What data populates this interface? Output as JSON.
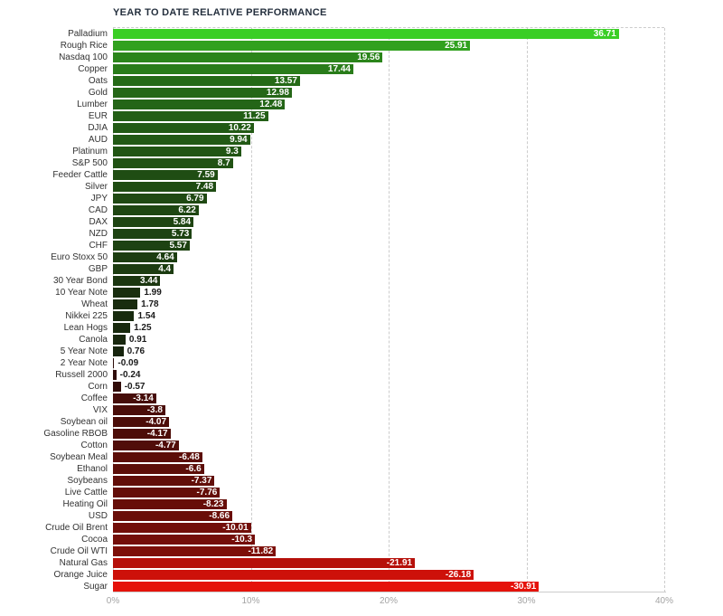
{
  "title": "YEAR TO DATE RELATIVE PERFORMANCE",
  "chart_data": {
    "type": "bar",
    "orientation": "horizontal",
    "title": "YEAR TO DATE RELATIVE PERFORMANCE",
    "x_axis": {
      "min": 0,
      "max": 40,
      "ticks": [
        "0%",
        "10%",
        "20%",
        "30%",
        "40%"
      ],
      "grid": "dashed"
    },
    "legend": "none",
    "note": "bars plotted by absolute value; color encodes sign and magnitude (green positive, red negative)",
    "colors": {
      "pos_high": "#3ace25",
      "pos_low": "#161f0d",
      "neg_low": "#2b0c09",
      "neg_high": "#e5120a",
      "label_inside": "#ffffff",
      "label_outside": "#1a1a1a"
    },
    "categories": [
      "Palladium",
      "Rough Rice",
      "Nasdaq 100",
      "Copper",
      "Oats",
      "Gold",
      "Lumber",
      "EUR",
      "DJIA",
      "AUD",
      "Platinum",
      "S&P 500",
      "Feeder Cattle",
      "Silver",
      "JPY",
      "CAD",
      "DAX",
      "NZD",
      "CHF",
      "Euro Stoxx 50",
      "GBP",
      "30 Year Bond",
      "10 Year Note",
      "Wheat",
      "Nikkei 225",
      "Lean Hogs",
      "Canola",
      "5 Year Note",
      "2 Year Note",
      "Russell 2000",
      "Corn",
      "Coffee",
      "VIX",
      "Soybean oil",
      "Gasoline RBOB",
      "Cotton",
      "Soybean Meal",
      "Ethanol",
      "Soybeans",
      "Live Cattle",
      "Heating Oil",
      "USD",
      "Crude Oil Brent",
      "Cocoa",
      "Crude Oil WTI",
      "Natural Gas",
      "Orange Juice",
      "Sugar"
    ],
    "values": [
      36.71,
      25.91,
      19.56,
      17.44,
      13.57,
      12.98,
      12.48,
      11.25,
      10.22,
      9.94,
      9.3,
      8.7,
      7.59,
      7.48,
      6.79,
      6.22,
      5.84,
      5.73,
      5.57,
      4.64,
      4.4,
      3.44,
      1.99,
      1.78,
      1.54,
      1.25,
      0.91,
      0.76,
      -0.09,
      -0.24,
      -0.57,
      -3.14,
      -3.8,
      -4.07,
      -4.17,
      -4.77,
      -6.48,
      -6.6,
      -7.37,
      -7.76,
      -8.23,
      -8.66,
      -10.01,
      -10.3,
      -11.82,
      -21.91,
      -26.18,
      -30.91
    ]
  }
}
